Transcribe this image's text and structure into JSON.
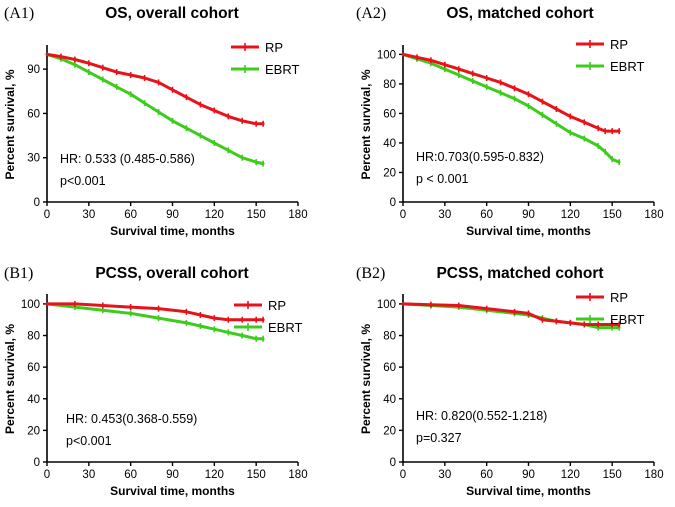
{
  "colors": {
    "rp": "#e8121b",
    "ebrt": "#3dcc1e",
    "axis": "#000000"
  },
  "chart_data": [
    {
      "type": "line",
      "panel_label": "(A1)",
      "title": "OS, overall cohort",
      "xlabel": "Survival time, months",
      "ylabel": "Percent survival, %",
      "xlim": [
        0,
        180
      ],
      "ylim": [
        0,
        105
      ],
      "xticks": [
        0,
        30,
        60,
        90,
        120,
        150,
        180
      ],
      "yticks": [
        0,
        30,
        60,
        90
      ],
      "annotation_lines": [
        "HR: 0.533 (0.485-0.586)",
        "p<0.001"
      ],
      "legend": [
        "RP",
        "EBRT"
      ],
      "series": [
        {
          "name": "RP",
          "x": [
            0,
            10,
            20,
            30,
            40,
            50,
            60,
            70,
            80,
            90,
            100,
            110,
            120,
            130,
            140,
            150,
            155
          ],
          "values": [
            100,
            98.5,
            96.5,
            94,
            91,
            88,
            86,
            84,
            81,
            76,
            71,
            66,
            62,
            58,
            55,
            53,
            53
          ]
        },
        {
          "name": "EBRT",
          "x": [
            0,
            10,
            20,
            30,
            40,
            50,
            60,
            70,
            80,
            90,
            100,
            110,
            120,
            130,
            140,
            150,
            155
          ],
          "values": [
            100,
            97,
            93,
            88,
            83,
            78,
            73,
            67,
            61,
            55,
            50,
            45,
            40,
            35,
            30,
            27,
            26
          ]
        }
      ]
    },
    {
      "type": "line",
      "panel_label": "(A2)",
      "title": "OS, matched cohort",
      "xlabel": "Survival time, months",
      "ylabel": "Percent survival, %",
      "xlim": [
        0,
        180
      ],
      "ylim": [
        0,
        105
      ],
      "xticks": [
        0,
        30,
        60,
        90,
        120,
        150,
        180
      ],
      "yticks": [
        0,
        20,
        40,
        60,
        80,
        100
      ],
      "annotation_lines": [
        "HR:0.703(0.595-0.832)",
        "p < 0.001"
      ],
      "legend": [
        "RP",
        "EBRT"
      ],
      "series": [
        {
          "name": "RP",
          "x": [
            0,
            10,
            20,
            30,
            40,
            50,
            60,
            70,
            80,
            90,
            100,
            110,
            120,
            130,
            140,
            145,
            150,
            155
          ],
          "values": [
            100,
            98,
            96,
            93,
            90,
            87,
            84,
            81,
            77,
            73,
            68,
            63,
            58,
            54,
            50,
            48,
            48,
            48
          ]
        },
        {
          "name": "EBRT",
          "x": [
            0,
            10,
            20,
            30,
            40,
            50,
            60,
            70,
            80,
            90,
            100,
            110,
            120,
            130,
            140,
            145,
            150,
            155
          ],
          "values": [
            100,
            97,
            94,
            90,
            86,
            82,
            78,
            74,
            70,
            65,
            59,
            53,
            47,
            43,
            38,
            34,
            29,
            27
          ]
        }
      ]
    },
    {
      "type": "line",
      "panel_label": "(B1)",
      "title": "PCSS, overall cohort",
      "xlabel": "Survival time, months",
      "ylabel": "Percent survival, %",
      "xlim": [
        0,
        180
      ],
      "ylim": [
        0,
        105
      ],
      "xticks": [
        0,
        30,
        60,
        90,
        120,
        150,
        180
      ],
      "yticks": [
        0,
        20,
        40,
        60,
        80,
        100
      ],
      "annotation_lines": [
        "HR: 0.453(0.368-0.559)",
        "p<0.001"
      ],
      "legend": [
        "RP",
        "EBRT"
      ],
      "series": [
        {
          "name": "RP",
          "x": [
            0,
            20,
            40,
            60,
            80,
            100,
            110,
            120,
            130,
            140,
            150,
            155
          ],
          "values": [
            100,
            100,
            99,
            98,
            97,
            95,
            93,
            91,
            90,
            90,
            90,
            90
          ]
        },
        {
          "name": "EBRT",
          "x": [
            0,
            20,
            40,
            60,
            80,
            100,
            110,
            120,
            130,
            140,
            150,
            155
          ],
          "values": [
            100,
            98,
            96,
            94,
            91,
            88,
            86,
            84,
            82,
            80,
            78,
            78
          ]
        }
      ]
    },
    {
      "type": "line",
      "panel_label": "(B2)",
      "title": "PCSS, matched cohort",
      "xlabel": "Survival time, months",
      "ylabel": "Percent survival, %",
      "xlim": [
        0,
        180
      ],
      "ylim": [
        0,
        105
      ],
      "xticks": [
        0,
        30,
        60,
        90,
        120,
        150,
        180
      ],
      "yticks": [
        0,
        20,
        40,
        60,
        80,
        100
      ],
      "annotation_lines": [
        "HR: 0.820(0.552-1.218)",
        "p=0.327"
      ],
      "legend": [
        "RP",
        "EBRT"
      ],
      "series": [
        {
          "name": "RP",
          "x": [
            0,
            20,
            40,
            60,
            80,
            90,
            100,
            110,
            120,
            130,
            140,
            150,
            155
          ],
          "values": [
            100,
            99.5,
            99,
            97,
            95,
            94,
            90,
            89,
            88,
            87,
            87,
            87,
            87
          ]
        },
        {
          "name": "EBRT",
          "x": [
            0,
            20,
            40,
            60,
            80,
            90,
            100,
            110,
            120,
            130,
            140,
            150,
            155
          ],
          "values": [
            100,
            99,
            98,
            96,
            94,
            93,
            91,
            89,
            88,
            87,
            85,
            85,
            85
          ]
        }
      ]
    }
  ]
}
